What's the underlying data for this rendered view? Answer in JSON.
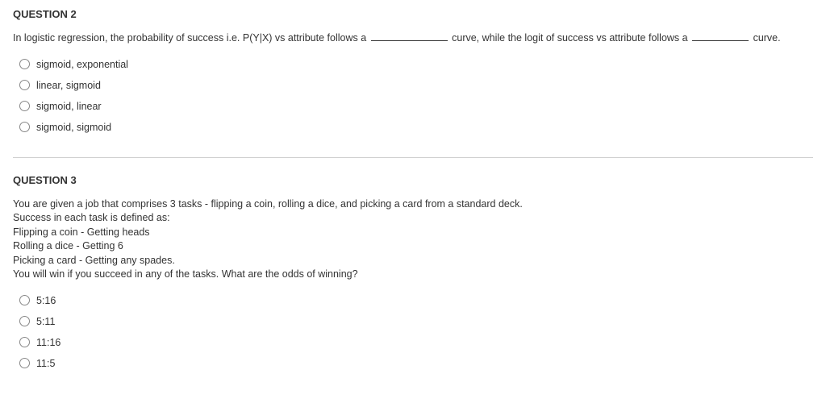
{
  "q2": {
    "title": "QUESTION 2",
    "text_pre": "In logistic regression, the probability of success i.e. P(Y|X) vs attribute follows a ",
    "text_mid": " curve, while the logit of success vs attribute follows a ",
    "text_post": " curve.",
    "options": [
      "sigmoid, exponential",
      "linear, sigmoid",
      "sigmoid, linear",
      "sigmoid, sigmoid"
    ]
  },
  "q3": {
    "title": "QUESTION 3",
    "lines": [
      "You are given a job that comprises 3 tasks - flipping a coin, rolling a dice, and picking a card from a standard deck.",
      "Success in each task is defined as:",
      "Flipping a coin - Getting heads",
      "Rolling a dice - Getting 6",
      "Picking a card - Getting any spades.",
      "You will win if you succeed in any of the tasks. What are the odds of winning?"
    ],
    "options": [
      "5:16",
      "5:11",
      "11:16",
      "11:5"
    ]
  }
}
